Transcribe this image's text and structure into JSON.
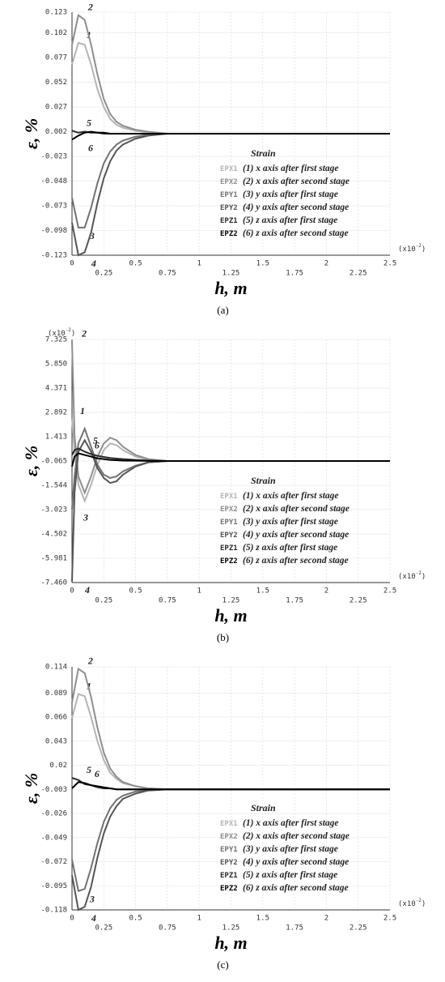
{
  "chart_data": [
    {
      "type": "line",
      "y_label": "ε, %",
      "x_label": "h, m",
      "caption": "(a)",
      "x_multiplier": [
        "(x10",
        "-2",
        ")"
      ],
      "legend_title": "Strain",
      "legend": "lower right",
      "grid": true,
      "xlim": [
        0,
        2.5
      ],
      "xticks": [
        0,
        0.25,
        0.5,
        0.75,
        1,
        1.25,
        1.5,
        1.75,
        2,
        2.25,
        2.5
      ],
      "ylim": [
        -0.123,
        0.123
      ],
      "yticks": [
        0.123,
        0.102,
        0.077,
        0.052,
        0.027,
        0.002,
        -0.023,
        -0.048,
        -0.073,
        -0.098,
        -0.123
      ],
      "x": [
        0,
        0.05,
        0.1,
        0.15,
        0.2,
        0.25,
        0.3,
        0.35,
        0.4,
        0.5,
        0.6,
        0.75,
        1,
        1.5,
        2,
        2.5
      ],
      "series": [
        {
          "name": "EPX1",
          "description": "(1) x axis after first stage",
          "curve_label": "1",
          "color": "#b4b4b4",
          "values": [
            0.07,
            0.092,
            0.09,
            0.07,
            0.045,
            0.027,
            0.015,
            0.009,
            0.006,
            0.003,
            0.001,
            0,
            0,
            0,
            0,
            0
          ]
        },
        {
          "name": "EPX2",
          "description": "(2) x axis after second stage",
          "curve_label": "2",
          "color": "#8e8e8e",
          "values": [
            0.09,
            0.12,
            0.115,
            0.09,
            0.06,
            0.035,
            0.02,
            0.012,
            0.008,
            0.004,
            0.002,
            0,
            0,
            0,
            0,
            0
          ]
        },
        {
          "name": "EPY1",
          "description": "(3) y axis after first stage",
          "curve_label": "3",
          "color": "#727272",
          "values": [
            -0.065,
            -0.095,
            -0.095,
            -0.075,
            -0.05,
            -0.03,
            -0.018,
            -0.011,
            -0.007,
            -0.003,
            -0.001,
            0,
            0,
            0,
            0,
            0
          ]
        },
        {
          "name": "EPY2",
          "description": "(4) y axis after second stage",
          "curve_label": "4",
          "color": "#555555",
          "values": [
            -0.09,
            -0.123,
            -0.12,
            -0.1,
            -0.07,
            -0.045,
            -0.028,
            -0.017,
            -0.011,
            -0.005,
            -0.002,
            0,
            0,
            0,
            0,
            0
          ]
        },
        {
          "name": "EPZ1",
          "description": "(5) z axis after first stage",
          "curve_label": "5",
          "color": "#2a2a2a",
          "values": [
            0.003,
            0.001,
            0.002,
            0.001,
            0.001,
            0,
            0,
            0,
            0,
            0,
            0,
            0,
            0,
            0,
            0,
            0
          ]
        },
        {
          "name": "EPZ2",
          "description": "(6) z axis after second stage",
          "curve_label": "6",
          "color": "#000000",
          "values": [
            -0.006,
            -0.002,
            0.001,
            0.002,
            0.001,
            0.001,
            0,
            0,
            0,
            0,
            0,
            0,
            0,
            0,
            0,
            0
          ]
        }
      ]
    },
    {
      "type": "line",
      "y_label": "ε, %",
      "x_label": "h, m",
      "caption": "(b)",
      "x_multiplier": [
        "(x10",
        "-2",
        ")"
      ],
      "y_multiplier": [
        "(x10",
        "-2",
        ")"
      ],
      "legend_title": "Strain",
      "legend": "lower right",
      "grid": true,
      "xlim": [
        0,
        2.5
      ],
      "xticks": [
        0,
        0.25,
        0.5,
        0.75,
        1,
        1.25,
        1.5,
        1.75,
        2,
        2.25,
        2.5
      ],
      "ylim": [
        -7.46,
        7.325
      ],
      "yticks": [
        7.325,
        {
          "value": 5.85,
          "label": "5.850"
        },
        4.371,
        2.892,
        1.413,
        -0.065,
        -1.544,
        -3.023,
        -4.502,
        -5.981,
        {
          "value": -7.46,
          "label": "-7.460"
        }
      ],
      "x": [
        0,
        0.02,
        0.05,
        0.1,
        0.15,
        0.2,
        0.25,
        0.3,
        0.35,
        0.4,
        0.5,
        0.6,
        0.75,
        1,
        1.5,
        2,
        2.5
      ],
      "series": [
        {
          "name": "EPX1",
          "description": "(1) x axis after first stage",
          "curve_label": "1",
          "color": "#b4b4b4",
          "values": [
            2.5,
            0.5,
            -1.5,
            -2.5,
            -1.5,
            -0.3,
            0.6,
            1.0,
            0.9,
            0.6,
            0.2,
            0.0,
            -0.065,
            -0.065,
            -0.065,
            -0.065,
            -0.065
          ]
        },
        {
          "name": "EPX2",
          "description": "(2) x axis after second stage",
          "curve_label": "2",
          "color": "#8e8e8e",
          "values": [
            7.2,
            1.5,
            -1.0,
            -2.0,
            -1.0,
            0.2,
            1.0,
            1.35,
            1.2,
            0.8,
            0.3,
            0.05,
            -0.065,
            -0.065,
            -0.065,
            -0.065,
            -0.065
          ]
        },
        {
          "name": "EPY1",
          "description": "(3) y axis after first stage",
          "curve_label": "3",
          "color": "#727272",
          "values": [
            -3.0,
            -1.0,
            1.0,
            1.9,
            0.8,
            -0.3,
            -0.9,
            -1.1,
            -1.0,
            -0.7,
            -0.35,
            -0.15,
            -0.065,
            -0.065,
            -0.065,
            -0.065,
            -0.065
          ]
        },
        {
          "name": "EPY2",
          "description": "(4) y axis after second stage",
          "curve_label": "4",
          "color": "#555555",
          "values": [
            -7.4,
            -2.0,
            0.5,
            1.2,
            0.5,
            -0.5,
            -1.1,
            -1.4,
            -1.3,
            -0.9,
            -0.4,
            -0.15,
            -0.065,
            -0.065,
            -0.065,
            -0.065,
            -0.065
          ]
        },
        {
          "name": "EPZ1",
          "description": "(5) z axis after first stage",
          "curve_label": "5",
          "color": "#2a2a2a",
          "values": [
            0.3,
            0.6,
            0.7,
            0.5,
            0.35,
            0.25,
            0.18,
            0.12,
            0.08,
            0.05,
            0.0,
            -0.04,
            -0.065,
            -0.065,
            -0.065,
            -0.065,
            -0.065
          ]
        },
        {
          "name": "EPZ2",
          "description": "(6) z axis after second stage",
          "curve_label": "6",
          "color": "#000000",
          "values": [
            -0.4,
            0.2,
            0.4,
            0.3,
            0.2,
            0.1,
            0.05,
            0.0,
            -0.02,
            -0.04,
            -0.05,
            -0.06,
            -0.065,
            -0.065,
            -0.065,
            -0.065,
            -0.065
          ]
        }
      ]
    },
    {
      "type": "line",
      "y_label": "ε, %",
      "x_label": "h, m",
      "caption": "(c)",
      "x_multiplier": [
        "(x10",
        "-2",
        ")"
      ],
      "legend_title": "Strain",
      "legend": "lower right",
      "grid": true,
      "xlim": [
        0,
        2.5
      ],
      "xticks": [
        0,
        0.25,
        0.5,
        0.75,
        1,
        1.25,
        1.5,
        1.75,
        2,
        2.25,
        2.5
      ],
      "ylim": [
        -0.118,
        0.114
      ],
      "yticks": [
        0.114,
        0.089,
        0.066,
        0.043,
        0.02,
        -0.003,
        -0.026,
        -0.049,
        -0.072,
        -0.095,
        -0.118
      ],
      "x": [
        0,
        0.05,
        0.1,
        0.15,
        0.2,
        0.25,
        0.3,
        0.35,
        0.4,
        0.5,
        0.6,
        0.75,
        1,
        1.5,
        2,
        2.5
      ],
      "series": [
        {
          "name": "EPX1",
          "description": "(1) x axis after first stage",
          "curve_label": "1",
          "color": "#b4b4b4",
          "values": [
            0.065,
            0.088,
            0.086,
            0.066,
            0.043,
            0.025,
            0.013,
            0.007,
            0.003,
            0,
            -0.002,
            -0.003,
            -0.003,
            -0.003,
            -0.003,
            -0.003
          ]
        },
        {
          "name": "EPX2",
          "description": "(2) x axis after second stage",
          "curve_label": "2",
          "color": "#8e8e8e",
          "values": [
            0.08,
            0.112,
            0.108,
            0.085,
            0.056,
            0.032,
            0.017,
            0.009,
            0.004,
            0,
            -0.002,
            -0.003,
            -0.003,
            -0.003,
            -0.003,
            -0.003
          ]
        },
        {
          "name": "EPY1",
          "description": "(3) y axis after first stage",
          "curve_label": "3",
          "color": "#727272",
          "values": [
            -0.07,
            -0.1,
            -0.098,
            -0.078,
            -0.054,
            -0.034,
            -0.021,
            -0.013,
            -0.009,
            -0.005,
            -0.004,
            -0.003,
            -0.003,
            -0.003,
            -0.003,
            -0.003
          ]
        },
        {
          "name": "EPY2",
          "description": "(4) y axis after second stage",
          "curve_label": "4",
          "color": "#555555",
          "values": [
            -0.085,
            -0.118,
            -0.115,
            -0.096,
            -0.068,
            -0.045,
            -0.029,
            -0.019,
            -0.012,
            -0.007,
            -0.004,
            -0.003,
            -0.003,
            -0.003,
            -0.003,
            -0.003
          ]
        },
        {
          "name": "EPZ1",
          "description": "(5) z axis after first stage",
          "curve_label": "5",
          "color": "#2a2a2a",
          "values": [
            0.008,
            0.006,
            0.002,
            0.001,
            -0.001,
            -0.002,
            -0.002,
            -0.003,
            -0.003,
            -0.003,
            -0.003,
            -0.003,
            -0.003,
            -0.003,
            -0.003,
            -0.003
          ]
        },
        {
          "name": "EPZ2",
          "description": "(6) z axis after second stage",
          "curve_label": "6",
          "color": "#000000",
          "values": [
            -0.002,
            0.004,
            0.003,
            0.001,
            0,
            -0.001,
            -0.002,
            -0.003,
            -0.003,
            -0.003,
            -0.003,
            -0.003,
            -0.003,
            -0.003,
            -0.003,
            -0.003
          ]
        }
      ]
    }
  ]
}
